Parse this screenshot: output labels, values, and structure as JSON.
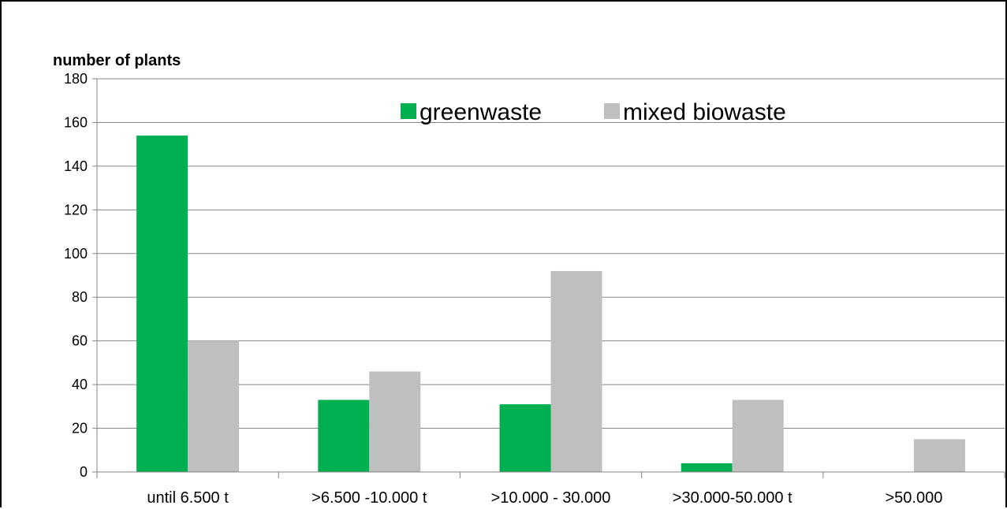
{
  "chart_data": {
    "type": "bar",
    "title": "",
    "xlabel": "",
    "ylabel": "number of plants",
    "ylim": [
      0,
      180
    ],
    "ytick_step": 20,
    "grid": true,
    "legend_position": "top-center",
    "categories": [
      "until 6.500 t",
      ">6.500 -10.000 t",
      ">10.000 - 30.000",
      ">30.000-50.000 t",
      ">50.000"
    ],
    "series": [
      {
        "name": "greenwaste",
        "color": "#00b050",
        "values": [
          154,
          33,
          31,
          4,
          0
        ]
      },
      {
        "name": "mixed biowaste",
        "color": "#bfbfbf",
        "values": [
          60,
          46,
          92,
          33,
          15
        ]
      }
    ]
  }
}
